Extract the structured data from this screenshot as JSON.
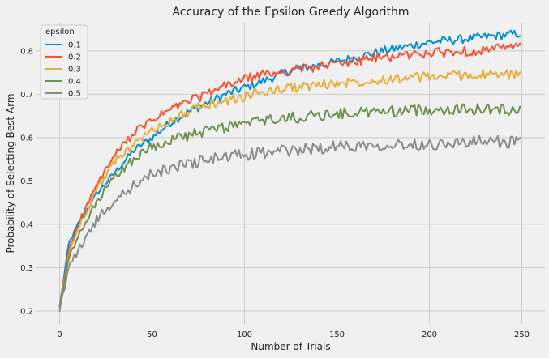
{
  "colors": {
    "background": "#f0f0f0",
    "plot_background": "#f0f0f0",
    "grid": "#cbcbcb"
  },
  "chart_data": {
    "type": "line",
    "title": "Accuracy of the Epsilon Greedy Algorithm",
    "xlabel": "Number of Trials",
    "ylabel": "Probability of Selecting Best Arm",
    "xlim": [
      -12.5,
      262.5
    ],
    "ylim": [
      0.17,
      0.865
    ],
    "xticks": [
      0,
      50,
      100,
      150,
      200,
      250
    ],
    "yticks": [
      0.2,
      0.3,
      0.4,
      0.5,
      0.6,
      0.7,
      0.8
    ],
    "xtick_labels": [
      "0",
      "50",
      "100",
      "150",
      "200",
      "250"
    ],
    "ytick_labels": [
      "0.2",
      "0.3",
      "0.4",
      "0.5",
      "0.6",
      "0.7",
      "0.8"
    ],
    "grid": true,
    "legend": {
      "title": "epsilon",
      "position": "top-left"
    },
    "x_range": [
      0,
      249
    ],
    "series": [
      {
        "name": "0.1",
        "color": "#008fd5",
        "start": 0.21,
        "anchors": [
          [
            0,
            0.21
          ],
          [
            5,
            0.355
          ],
          [
            10,
            0.4
          ],
          [
            20,
            0.47
          ],
          [
            30,
            0.52
          ],
          [
            40,
            0.57
          ],
          [
            50,
            0.6
          ],
          [
            60,
            0.635
          ],
          [
            70,
            0.66
          ],
          [
            80,
            0.68
          ],
          [
            90,
            0.7
          ],
          [
            100,
            0.715
          ],
          [
            110,
            0.73
          ],
          [
            125,
            0.755
          ],
          [
            150,
            0.775
          ],
          [
            175,
            0.8
          ],
          [
            200,
            0.82
          ],
          [
            225,
            0.83
          ],
          [
            249,
            0.84
          ]
        ]
      },
      {
        "name": "0.2",
        "color": "#fc4f30",
        "start": 0.21,
        "anchors": [
          [
            0,
            0.21
          ],
          [
            5,
            0.34
          ],
          [
            10,
            0.4
          ],
          [
            20,
            0.49
          ],
          [
            30,
            0.56
          ],
          [
            40,
            0.61
          ],
          [
            50,
            0.64
          ],
          [
            60,
            0.665
          ],
          [
            70,
            0.685
          ],
          [
            80,
            0.7
          ],
          [
            90,
            0.72
          ],
          [
            100,
            0.735
          ],
          [
            110,
            0.745
          ],
          [
            125,
            0.755
          ],
          [
            150,
            0.77
          ],
          [
            175,
            0.785
          ],
          [
            200,
            0.795
          ],
          [
            225,
            0.8
          ],
          [
            249,
            0.81
          ]
        ]
      },
      {
        "name": "0.3",
        "color": "#e5ae38",
        "start": 0.21,
        "anchors": [
          [
            0,
            0.21
          ],
          [
            5,
            0.33
          ],
          [
            10,
            0.39
          ],
          [
            20,
            0.48
          ],
          [
            30,
            0.545
          ],
          [
            40,
            0.585
          ],
          [
            50,
            0.615
          ],
          [
            60,
            0.64
          ],
          [
            70,
            0.66
          ],
          [
            80,
            0.675
          ],
          [
            90,
            0.685
          ],
          [
            100,
            0.695
          ],
          [
            110,
            0.705
          ],
          [
            125,
            0.715
          ],
          [
            150,
            0.725
          ],
          [
            175,
            0.735
          ],
          [
            200,
            0.74
          ],
          [
            225,
            0.745
          ],
          [
            249,
            0.745
          ]
        ]
      },
      {
        "name": "0.4",
        "color": "#6d904f",
        "start": 0.21,
        "anchors": [
          [
            0,
            0.21
          ],
          [
            5,
            0.32
          ],
          [
            10,
            0.37
          ],
          [
            20,
            0.45
          ],
          [
            30,
            0.51
          ],
          [
            40,
            0.55
          ],
          [
            50,
            0.58
          ],
          [
            60,
            0.595
          ],
          [
            70,
            0.605
          ],
          [
            80,
            0.615
          ],
          [
            90,
            0.625
          ],
          [
            100,
            0.63
          ],
          [
            110,
            0.64
          ],
          [
            125,
            0.645
          ],
          [
            150,
            0.655
          ],
          [
            175,
            0.66
          ],
          [
            200,
            0.665
          ],
          [
            225,
            0.665
          ],
          [
            249,
            0.665
          ]
        ]
      },
      {
        "name": "0.5",
        "color": "#8b8b8b",
        "start": 0.2,
        "anchors": [
          [
            0,
            0.2
          ],
          [
            5,
            0.3
          ],
          [
            10,
            0.34
          ],
          [
            20,
            0.41
          ],
          [
            30,
            0.455
          ],
          [
            40,
            0.49
          ],
          [
            50,
            0.515
          ],
          [
            60,
            0.53
          ],
          [
            70,
            0.54
          ],
          [
            80,
            0.55
          ],
          [
            90,
            0.555
          ],
          [
            100,
            0.56
          ],
          [
            110,
            0.565
          ],
          [
            125,
            0.57
          ],
          [
            150,
            0.58
          ],
          [
            175,
            0.585
          ],
          [
            200,
            0.585
          ],
          [
            225,
            0.59
          ],
          [
            249,
            0.59
          ]
        ]
      }
    ]
  }
}
